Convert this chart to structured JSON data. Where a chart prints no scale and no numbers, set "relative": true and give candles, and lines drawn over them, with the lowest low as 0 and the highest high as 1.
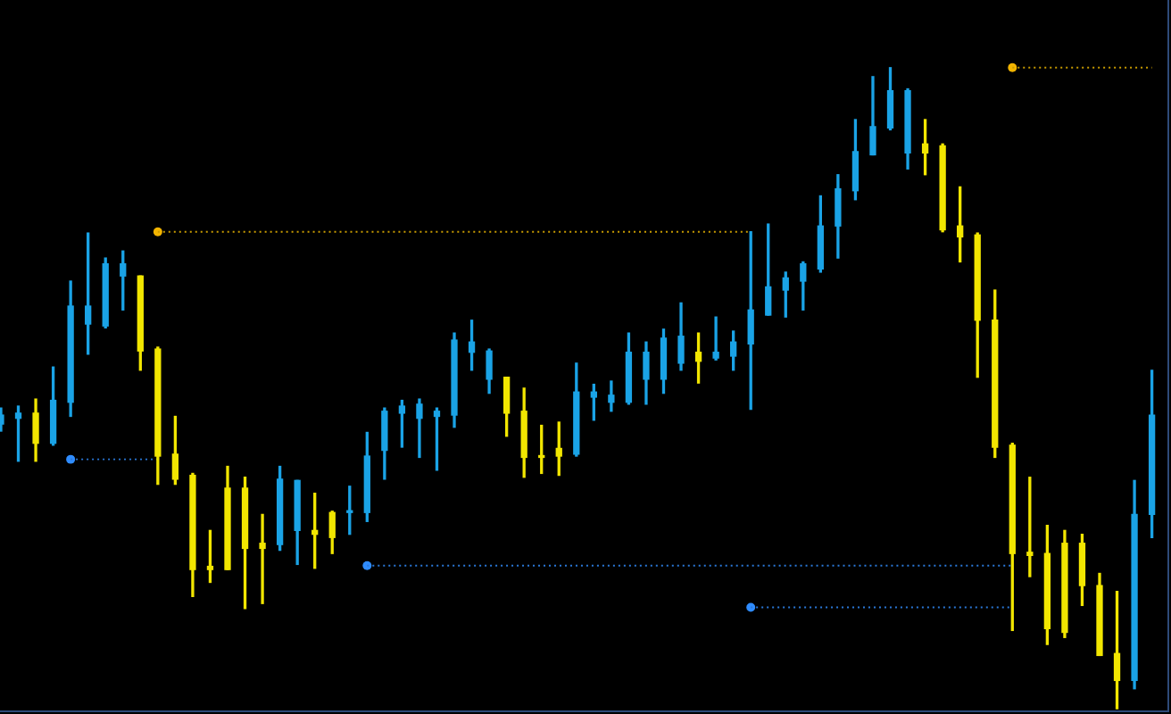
{
  "chart_data": {
    "type": "candlestick",
    "relative": true,
    "categories": [
      null,
      null,
      null,
      null,
      null,
      null,
      null,
      null,
      null,
      null,
      null,
      null,
      null,
      null,
      null,
      null,
      null,
      null,
      null,
      null,
      null,
      null,
      null,
      null,
      null,
      null,
      null,
      null,
      null,
      null,
      null,
      null,
      null,
      null,
      null,
      null,
      null,
      null,
      null,
      null,
      null,
      null,
      null,
      null,
      null,
      null,
      null,
      null,
      null,
      null,
      null,
      null,
      null,
      null,
      null,
      null,
      null,
      null,
      null,
      null,
      null,
      null,
      null,
      null,
      null,
      null,
      null
    ],
    "ohlc": [
      [
        0.444,
        0.469,
        0.433,
        0.458
      ],
      [
        0.453,
        0.472,
        0.386,
        0.461
      ],
      [
        0.461,
        0.483,
        0.386,
        0.414
      ],
      [
        0.414,
        0.533,
        0.411,
        0.481
      ],
      [
        0.478,
        0.667,
        0.456,
        0.628
      ],
      [
        0.6,
        0.742,
        0.553,
        0.628
      ],
      [
        0.597,
        0.703,
        0.594,
        0.694
      ],
      [
        0.675,
        0.714,
        0.622,
        0.694
      ],
      [
        0.675,
        0.675,
        0.528,
        0.558
      ],
      [
        0.561,
        0.564,
        0.35,
        0.394
      ],
      [
        0.397,
        0.456,
        0.35,
        0.358
      ],
      [
        0.364,
        0.367,
        0.175,
        0.217
      ],
      [
        0.222,
        0.278,
        0.197,
        0.217
      ],
      [
        0.344,
        0.378,
        0.217,
        0.217
      ],
      [
        0.344,
        0.361,
        0.156,
        0.25
      ],
      [
        0.258,
        0.303,
        0.164,
        0.25
      ],
      [
        0.256,
        0.378,
        0.247,
        0.358
      ],
      [
        0.278,
        0.356,
        0.225,
        0.356
      ],
      [
        0.278,
        0.336,
        0.219,
        0.272
      ],
      [
        0.306,
        0.308,
        0.242,
        0.267
      ],
      [
        0.306,
        0.347,
        0.272,
        0.308
      ],
      [
        0.306,
        0.431,
        0.292,
        0.394
      ],
      [
        0.403,
        0.469,
        0.358,
        0.464
      ],
      [
        0.461,
        0.481,
        0.408,
        0.472
      ],
      [
        0.453,
        0.483,
        0.392,
        0.475
      ],
      [
        0.456,
        0.469,
        0.372,
        0.464
      ],
      [
        0.458,
        0.586,
        0.439,
        0.575
      ],
      [
        0.556,
        0.606,
        0.528,
        0.572
      ],
      [
        0.514,
        0.561,
        0.492,
        0.558
      ],
      [
        0.517,
        0.517,
        0.425,
        0.461
      ],
      [
        0.464,
        0.5,
        0.361,
        0.392
      ],
      [
        0.394,
        0.442,
        0.367,
        0.392
      ],
      [
        0.406,
        0.447,
        0.364,
        0.394
      ],
      [
        0.397,
        0.539,
        0.394,
        0.494
      ],
      [
        0.486,
        0.506,
        0.45,
        0.494
      ],
      [
        0.478,
        0.511,
        0.464,
        0.489
      ],
      [
        0.478,
        0.586,
        0.475,
        0.556
      ],
      [
        0.514,
        0.572,
        0.475,
        0.556
      ],
      [
        0.514,
        0.592,
        0.492,
        0.578
      ],
      [
        0.539,
        0.633,
        0.528,
        0.581
      ],
      [
        0.556,
        0.586,
        0.508,
        0.542
      ],
      [
        0.547,
        0.611,
        0.544,
        0.556
      ],
      [
        0.55,
        0.589,
        0.528,
        0.572
      ],
      [
        0.569,
        0.744,
        0.467,
        0.622
      ],
      [
        0.614,
        0.756,
        0.614,
        0.658
      ],
      [
        0.653,
        0.681,
        0.611,
        0.672
      ],
      [
        0.667,
        0.697,
        0.622,
        0.694
      ],
      [
        0.686,
        0.8,
        0.681,
        0.753
      ],
      [
        0.753,
        0.833,
        0.703,
        0.811
      ],
      [
        0.808,
        0.919,
        0.794,
        0.869
      ],
      [
        0.864,
        0.986,
        0.864,
        0.908
      ],
      [
        0.906,
        1.0,
        0.903,
        0.964
      ],
      [
        0.867,
        0.967,
        0.842,
        0.964
      ],
      [
        0.881,
        0.919,
        0.833,
        0.867
      ],
      [
        0.878,
        0.881,
        0.744,
        0.747
      ],
      [
        0.753,
        0.814,
        0.697,
        0.736
      ],
      [
        0.739,
        0.742,
        0.517,
        0.606
      ],
      [
        0.606,
        0.653,
        0.392,
        0.408
      ],
      [
        0.411,
        0.414,
        0.122,
        0.242
      ],
      [
        0.244,
        0.361,
        0.206,
        0.239
      ],
      [
        0.242,
        0.286,
        0.1,
        0.125
      ],
      [
        0.258,
        0.278,
        0.111,
        0.119
      ],
      [
        0.258,
        0.272,
        0.161,
        0.192
      ],
      [
        0.192,
        0.211,
        0.083,
        0.083
      ],
      [
        0.086,
        0.183,
        0.0,
        0.044
      ],
      [
        0.044,
        0.356,
        0.031,
        0.303
      ],
      [
        0.303,
        0.528,
        0.267,
        0.458
      ]
    ],
    "colors": [
      "#1aa3e6",
      "#1aa3e6",
      "#f2e600",
      "#1aa3e6",
      "#1aa3e6",
      "#1aa3e6",
      "#1aa3e6",
      "#1aa3e6",
      "#f2e600",
      "#f2e600",
      "#f2e600",
      "#f2e600",
      "#f2e600",
      "#f2e600",
      "#f2e600",
      "#f2e600",
      "#1aa3e6",
      "#1aa3e6",
      "#f2e600",
      "#f2e600",
      "#1aa3e6",
      "#1aa3e6",
      "#1aa3e6",
      "#1aa3e6",
      "#1aa3e6",
      "#1aa3e6",
      "#1aa3e6",
      "#1aa3e6",
      "#1aa3e6",
      "#f2e600",
      "#f2e600",
      "#f2e600",
      "#f2e600",
      "#1aa3e6",
      "#1aa3e6",
      "#1aa3e6",
      "#1aa3e6",
      "#1aa3e6",
      "#1aa3e6",
      "#1aa3e6",
      "#f2e600",
      "#1aa3e6",
      "#1aa3e6",
      "#1aa3e6",
      "#1aa3e6",
      "#1aa3e6",
      "#1aa3e6",
      "#1aa3e6",
      "#1aa3e6",
      "#1aa3e6",
      "#1aa3e6",
      "#1aa3e6",
      "#1aa3e6",
      "#f2e600",
      "#f2e600",
      "#f2e600",
      "#f2e600",
      "#f2e600",
      "#f2e600",
      "#f2e600",
      "#f2e600",
      "#f2e600",
      "#f2e600",
      "#f2e600",
      "#f2e600",
      "#1aa3e6",
      "#1aa3e6"
    ],
    "series": [
      {
        "type": "line",
        "color": "#c89b00",
        "line_style": "dotted",
        "marker": "none",
        "values": [
          null,
          null,
          null,
          null,
          null,
          null,
          null,
          null,
          null,
          0.744,
          0.744,
          0.744,
          0.744,
          0.744,
          0.744,
          0.744,
          0.744,
          0.744,
          0.744,
          0.744,
          0.744,
          0.744,
          0.744,
          0.744,
          0.744,
          0.744,
          0.744,
          0.744,
          0.744,
          0.744,
          0.744,
          0.744,
          0.744,
          0.744,
          0.744,
          0.744,
          0.744,
          0.744,
          0.744,
          0.744,
          0.744,
          0.744,
          0.744,
          0.744,
          null,
          null,
          null,
          null,
          null,
          null,
          null,
          null,
          null,
          null,
          null,
          null,
          null,
          null,
          null,
          null,
          null,
          null,
          null,
          null,
          null,
          null,
          null
        ]
      },
      {
        "type": "line",
        "color": "#2a78d8",
        "line_style": "dotted",
        "marker": "none",
        "values": [
          null,
          null,
          null,
          null,
          0.389,
          0.389,
          0.389,
          0.389,
          0.389,
          0.389,
          null,
          null,
          null,
          null,
          null,
          null,
          null,
          null,
          null,
          null,
          null,
          null,
          null,
          null,
          null,
          null,
          null,
          null,
          null,
          null,
          null,
          null,
          null,
          null,
          null,
          null,
          null,
          null,
          null,
          null,
          null,
          null,
          null,
          null,
          null,
          null,
          null,
          null,
          null,
          null,
          null,
          null,
          null,
          null,
          null,
          null,
          null,
          null,
          null,
          null,
          null,
          null,
          null,
          null,
          null,
          null,
          null
        ]
      },
      {
        "type": "line",
        "color": "#2a78d8",
        "line_style": "dotted",
        "marker": "none",
        "values": [
          null,
          null,
          null,
          null,
          null,
          null,
          null,
          null,
          null,
          null,
          null,
          null,
          null,
          null,
          null,
          null,
          null,
          null,
          null,
          null,
          null,
          0.223,
          0.223,
          0.223,
          0.223,
          0.223,
          0.223,
          0.223,
          0.223,
          0.223,
          0.223,
          0.223,
          0.223,
          0.223,
          0.223,
          0.223,
          0.223,
          0.223,
          0.223,
          0.223,
          0.223,
          0.223,
          0.223,
          0.223,
          0.223,
          0.223,
          0.223,
          0.223,
          0.223,
          0.223,
          0.223,
          0.223,
          0.223,
          0.223,
          0.223,
          0.223,
          0.223,
          0.223,
          0.223,
          null,
          null,
          null,
          null,
          null,
          null,
          null,
          null
        ]
      },
      {
        "type": "line",
        "color": "#2a78d8",
        "line_style": "dotted",
        "marker": "none",
        "values": [
          null,
          null,
          null,
          null,
          null,
          null,
          null,
          null,
          null,
          null,
          null,
          null,
          null,
          null,
          null,
          null,
          null,
          null,
          null,
          null,
          null,
          null,
          null,
          null,
          null,
          null,
          null,
          null,
          null,
          null,
          null,
          null,
          null,
          null,
          null,
          null,
          null,
          null,
          null,
          null,
          null,
          null,
          null,
          0.158,
          0.158,
          0.158,
          0.158,
          0.158,
          0.158,
          0.158,
          0.158,
          0.158,
          0.158,
          0.158,
          0.158,
          0.158,
          0.158,
          0.158,
          0.158,
          null,
          null,
          null,
          null,
          null,
          null,
          null,
          null
        ]
      },
      {
        "type": "line",
        "color": "#c89b00",
        "line_style": "dotted",
        "marker": "none",
        "values": [
          null,
          null,
          null,
          null,
          null,
          null,
          null,
          null,
          null,
          null,
          null,
          null,
          null,
          null,
          null,
          null,
          null,
          null,
          null,
          null,
          null,
          null,
          null,
          null,
          null,
          null,
          null,
          null,
          null,
          null,
          null,
          null,
          null,
          null,
          null,
          null,
          null,
          null,
          null,
          null,
          null,
          null,
          null,
          null,
          null,
          null,
          null,
          null,
          null,
          null,
          null,
          null,
          null,
          null,
          null,
          null,
          null,
          null,
          1,
          1,
          1,
          1,
          1,
          1,
          1,
          1,
          1
        ]
      },
      {
        "type": "scatter",
        "color": "#f2b400",
        "marker": "circle",
        "values": [
          null,
          null,
          null,
          null,
          null,
          null,
          null,
          null,
          null,
          0.744,
          null,
          null,
          null,
          null,
          null,
          null,
          null,
          null,
          null,
          null,
          null,
          null,
          null,
          null,
          null,
          null,
          null,
          null,
          null,
          null,
          null,
          null,
          null,
          null,
          null,
          null,
          null,
          null,
          null,
          null,
          null,
          null,
          null,
          null,
          null,
          null,
          null,
          null,
          null,
          null,
          null,
          null,
          null,
          null,
          null,
          null,
          null,
          null,
          1,
          null,
          null,
          null,
          null,
          null,
          null,
          null,
          null
        ]
      },
      {
        "type": "scatter",
        "color": "#2f8cff",
        "marker": "circle",
        "values": [
          null,
          null,
          null,
          null,
          0.389,
          null,
          null,
          null,
          null,
          null,
          null,
          null,
          null,
          null,
          null,
          null,
          null,
          null,
          null,
          null,
          null,
          0.223,
          null,
          null,
          null,
          null,
          null,
          null,
          null,
          null,
          null,
          null,
          null,
          null,
          null,
          null,
          null,
          null,
          null,
          null,
          null,
          null,
          null,
          0.158,
          null,
          null,
          null,
          null,
          null,
          null,
          null,
          null,
          null,
          null,
          null,
          null,
          null,
          null,
          null,
          null,
          null,
          null,
          null,
          null,
          null,
          null,
          null
        ]
      }
    ]
  }
}
